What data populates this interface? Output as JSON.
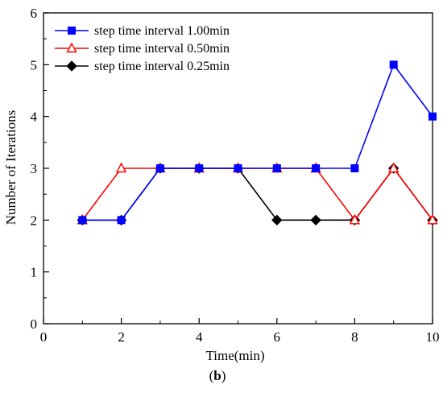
{
  "chart_data": {
    "type": "line",
    "title": "",
    "xlabel": "Time(min)",
    "ylabel": "Number of Iterations",
    "xlim": [
      0,
      10
    ],
    "ylim": [
      0,
      6
    ],
    "xticks": [
      0,
      2,
      4,
      6,
      8,
      10
    ],
    "yticks": [
      0,
      1,
      2,
      3,
      4,
      5,
      6
    ],
    "grid": false,
    "legend_position": "top-left",
    "caption_open": "(",
    "caption_letter": "b",
    "caption_close": ")",
    "series": [
      {
        "name": "step time interval 1.00min",
        "color": "#0000ff",
        "marker": "square-filled",
        "x": [
          1,
          2,
          3,
          4,
          5,
          6,
          7,
          8,
          9,
          10
        ],
        "y": [
          2,
          2,
          3,
          3,
          3,
          3,
          3,
          3,
          5,
          4
        ]
      },
      {
        "name": "step time interval 0.50min",
        "color": "#ff0000",
        "marker": "triangle-open",
        "x": [
          1,
          2,
          3,
          4,
          5,
          6,
          7,
          8,
          9,
          10
        ],
        "y": [
          2,
          3,
          3,
          3,
          3,
          3,
          3,
          2,
          3,
          2
        ]
      },
      {
        "name": "step time interval 0.25min",
        "color": "#000000",
        "marker": "diamond-filled",
        "x": [
          1,
          2,
          3,
          4,
          5,
          6,
          7,
          8,
          9,
          10
        ],
        "y": [
          2,
          2,
          3,
          3,
          3,
          2,
          2,
          2,
          3,
          2
        ]
      }
    ]
  }
}
